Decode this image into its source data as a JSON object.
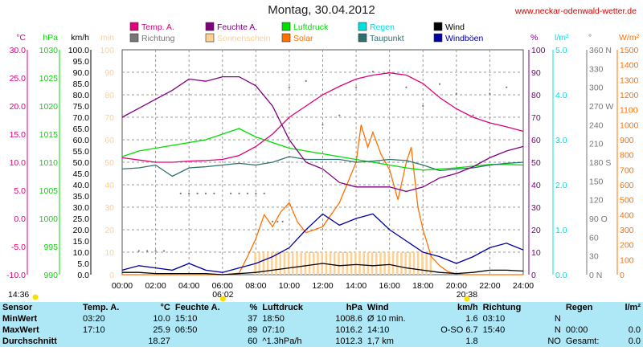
{
  "header": {
    "title": "Montag, 30.04.2012",
    "site": "www.neckar-odenwald-wetter.de"
  },
  "colors": {
    "temp": "#e0007a",
    "humidity": "#800080",
    "pressure": "#00dd00",
    "rain": "#00e0e0",
    "wind": "#000000",
    "direction": "#777777",
    "sunshine": "#ffd090",
    "solar": "#ff7000",
    "dewpoint": "#2e7070",
    "gusts": "#0000a0",
    "table_bg": "#aee7f5"
  },
  "chart_data": {
    "type": "line",
    "title": "Montag, 30.04.2012",
    "x": [
      "00:00",
      "02:00",
      "04:00",
      "06:00",
      "08:00",
      "10:00",
      "12:00",
      "14:00",
      "16:00",
      "18:00",
      "20:00",
      "22:00",
      "24:00"
    ],
    "legend": [
      {
        "label": "Temp. A.",
        "key": "temp"
      },
      {
        "label": "Feuchte A.",
        "key": "humidity"
      },
      {
        "label": "Luftdruck",
        "key": "pressure"
      },
      {
        "label": "Regen",
        "key": "rain"
      },
      {
        "label": "Wind",
        "key": "wind"
      },
      {
        "label": "Richtung",
        "key": "direction"
      },
      {
        "label": "Sonnenschein",
        "key": "sunshine"
      },
      {
        "label": "Solar",
        "key": "solar"
      },
      {
        "label": "Taupunkt",
        "key": "dewpoint"
      },
      {
        "label": "Windböen",
        "key": "gusts"
      }
    ],
    "axes": {
      "left": [
        {
          "unit": "°C",
          "ticks": [
            "30.0",
            "25.0",
            "20.0",
            "15.0",
            "10.0",
            "5.0",
            "0.0",
            "-5.0",
            "-10.0"
          ],
          "color": "temp"
        },
        {
          "unit": "hPa",
          "ticks": [
            "1030",
            "1025",
            "1020",
            "1015",
            "1010",
            "1005",
            "1000",
            "995",
            "990"
          ],
          "color": "pressure"
        },
        {
          "unit": "km/h",
          "ticks": [
            "100.0",
            "95.0",
            "90.0",
            "85.0",
            "80.0",
            "75.0",
            "70.0",
            "65.0",
            "60.0",
            "55.0",
            "50.0",
            "45.0",
            "40.0",
            "35.0",
            "30.0",
            "25.0",
            "20.0",
            "15.0",
            "10.0",
            "5.0",
            "0.0"
          ],
          "color": "wind"
        },
        {
          "unit": "min",
          "ticks": [
            "100",
            "90",
            "80",
            "70",
            "60",
            "50",
            "40",
            "30",
            "20",
            "10",
            "0"
          ],
          "color": "sunshine"
        }
      ],
      "right": [
        {
          "unit": "%",
          "ticks": [
            "100",
            "90",
            "80",
            "70",
            "60",
            "50",
            "40",
            "30",
            "20",
            "10",
            "0"
          ],
          "color": "humidity"
        },
        {
          "unit": "l/m²",
          "ticks": [
            "5.0",
            "4.0",
            "3.0",
            "2.0",
            "1.0",
            "0.0"
          ],
          "color": "rain"
        },
        {
          "unit": "°",
          "ticks": [
            "360 N",
            "330",
            "300",
            "270 W",
            "240",
            "210",
            "180 S",
            "150",
            "120",
            "90 O",
            "60",
            "30",
            "0 N"
          ],
          "color": "direction"
        },
        {
          "unit": "W/m²",
          "ticks": [
            "1500",
            "1400",
            "1300",
            "1200",
            "1100",
            "1000",
            "900",
            "800",
            "700",
            "600",
            "500",
            "400",
            "300",
            "200",
            "100",
            "0"
          ],
          "color": "solar"
        }
      ]
    },
    "series": [
      {
        "name": "Temp. A.",
        "key": "temp",
        "axis": "°C",
        "x": [
          0,
          1,
          2,
          3,
          4,
          5,
          6,
          7,
          8,
          9,
          10,
          11,
          12,
          13,
          14,
          15,
          16,
          17,
          18,
          19,
          20,
          21,
          22,
          23,
          24
        ],
        "y": [
          10.8,
          10.4,
          10.0,
          10.0,
          10.2,
          10.3,
          10.5,
          11.2,
          12.8,
          15.0,
          18.0,
          20.0,
          22.0,
          23.5,
          24.8,
          25.5,
          25.9,
          25.5,
          24.0,
          21.5,
          19.5,
          18.0,
          17.0,
          16.3,
          15.5
        ]
      },
      {
        "name": "Feuchte A.",
        "key": "humidity",
        "axis": "%",
        "x": [
          0,
          1,
          2,
          3,
          4,
          5,
          6,
          7,
          8,
          9,
          10,
          11,
          12,
          13,
          14,
          15,
          16,
          17,
          18,
          19,
          20,
          21,
          22,
          23,
          24
        ],
        "y": [
          70,
          74,
          78,
          82,
          87,
          86,
          88,
          88,
          84,
          75,
          60,
          50,
          47,
          41,
          39,
          39,
          39,
          37,
          39,
          43,
          45,
          48,
          52,
          55,
          57
        ]
      },
      {
        "name": "Luftdruck",
        "key": "pressure",
        "axis": "hPa",
        "x": [
          0,
          1,
          2,
          3,
          4,
          5,
          6,
          7,
          8,
          9,
          10,
          11,
          12,
          13,
          14,
          15,
          16,
          17,
          18,
          19,
          20,
          21,
          22,
          23,
          24
        ],
        "y": [
          1011.0,
          1012.0,
          1012.5,
          1013.0,
          1013.5,
          1014.0,
          1015.0,
          1016.0,
          1014.5,
          1013.5,
          1012.5,
          1012.0,
          1011.5,
          1011.0,
          1010.5,
          1010.0,
          1009.5,
          1009.0,
          1008.6,
          1008.8,
          1009.0,
          1009.3,
          1009.6,
          1009.6,
          1009.5
        ]
      },
      {
        "name": "Taupunkt",
        "key": "dewpoint",
        "axis": "°C",
        "x": [
          0,
          1,
          2,
          3,
          4,
          5,
          6,
          7,
          8,
          9,
          10,
          11,
          12,
          13,
          14,
          15,
          16,
          17,
          18,
          19,
          20,
          21,
          22,
          23,
          24
        ],
        "y": [
          8.8,
          9.0,
          9.5,
          7.5,
          9.0,
          9.2,
          9.5,
          9.8,
          9.5,
          10.0,
          11.0,
          10.5,
          10.5,
          10.5,
          10.0,
          10.2,
          10.5,
          10.3,
          9.5,
          8.5,
          8.8,
          9.0,
          9.5,
          9.8,
          10.0
        ]
      },
      {
        "name": "Solar",
        "key": "solar",
        "axis": "W/m²",
        "x": [
          0,
          6,
          7,
          7.5,
          8,
          8.5,
          9,
          9.5,
          10,
          10.5,
          11,
          12,
          13,
          14,
          14.3,
          14.7,
          15,
          15.5,
          16,
          16.5,
          17,
          17.3,
          17.7,
          18,
          18.5,
          19,
          19.5,
          20,
          20.5,
          24
        ],
        "y": [
          0,
          0,
          10,
          120,
          240,
          400,
          320,
          420,
          480,
          350,
          280,
          320,
          480,
          750,
          1000,
          850,
          950,
          800,
          700,
          500,
          750,
          850,
          450,
          300,
          120,
          60,
          20,
          5,
          0,
          0
        ]
      },
      {
        "name": "Wind",
        "key": "wind",
        "axis": "km/h",
        "x": [
          0,
          1,
          2,
          3,
          4,
          5,
          6,
          7,
          8,
          9,
          10,
          11,
          12,
          13,
          14,
          15,
          16,
          17,
          18,
          19,
          20,
          21,
          22,
          23,
          24
        ],
        "y": [
          1,
          1,
          0.5,
          0.5,
          0.5,
          0.5,
          0,
          0.5,
          1,
          2,
          3,
          4,
          5,
          4,
          4.5,
          4,
          4.5,
          3,
          2,
          1,
          0.5,
          1,
          2,
          2,
          1.6
        ]
      },
      {
        "name": "Windböen",
        "key": "gusts",
        "axis": "km/h",
        "x": [
          0,
          1,
          2,
          3,
          4,
          5,
          6,
          7,
          8,
          9,
          10,
          11,
          12,
          13,
          14,
          15,
          16,
          17,
          18,
          19,
          20,
          21,
          22,
          23,
          24
        ],
        "y": [
          2,
          4,
          3,
          2,
          5,
          2,
          1,
          3,
          5,
          8,
          12,
          20,
          27,
          22,
          25,
          27,
          20,
          15,
          10,
          8,
          5,
          8,
          12,
          14,
          11
        ]
      }
    ],
    "sunshine": {
      "key": "sunshine",
      "axis": "min",
      "x_start": 7.9,
      "x_end": 18.6,
      "value": 10
    },
    "markers": [
      {
        "label": "06:02",
        "x": 6.03
      },
      {
        "label": "20:38",
        "x": 20.63
      }
    ],
    "corner_label": "14:36"
  },
  "stats": {
    "headers": [
      "Sensor",
      "Temp. A.",
      "°C",
      "Feuchte A.",
      "%",
      "Luftdruck",
      "hPa",
      "Wind",
      "km/h",
      "Richtung",
      "",
      "Regen",
      "l/m²"
    ],
    "rows": [
      {
        "label": "MinWert",
        "cells": [
          "03:20",
          "10.0",
          "15:10",
          "37",
          "18:50",
          "1008.6",
          "Ø 10 min.",
          "1.6",
          "03:10",
          "N",
          "",
          ""
        ]
      },
      {
        "label": "MaxWert",
        "cells": [
          "17:10",
          "25.9",
          "06:50",
          "89",
          "07:10",
          "1016.2",
          "14:10",
          "O-SO 6.7",
          "15:40",
          "N",
          "00:00",
          "0.0"
        ]
      },
      {
        "label": "Durchschnitt",
        "cells": [
          "",
          "18.27",
          "",
          "60",
          "^1.3hPa/h",
          "1012.3",
          "1,7 km",
          "1.8",
          "",
          "NO",
          "Gesamt:",
          "0.0"
        ]
      }
    ]
  }
}
